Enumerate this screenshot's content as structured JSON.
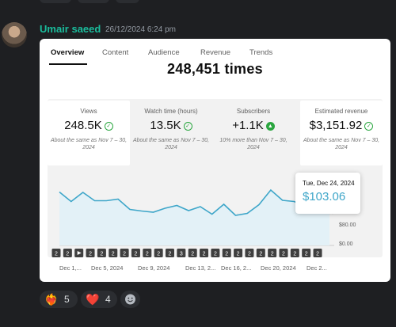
{
  "message": {
    "author": "Umair saeed",
    "timestamp": "26/12/2024 6:24 pm"
  },
  "screenshot": {
    "tabs": [
      {
        "label": "Overview",
        "active": true
      },
      {
        "label": "Content",
        "active": false
      },
      {
        "label": "Audience",
        "active": false
      },
      {
        "label": "Revenue",
        "active": false
      },
      {
        "label": "Trends",
        "active": false
      }
    ],
    "partial_heading": "248,451 times",
    "metrics": [
      {
        "label": "Views",
        "value": "248.5K",
        "note": "About the same as Nov 7 – 30, 2024",
        "icon": "check-circle-icon"
      },
      {
        "label": "Watch time (hours)",
        "value": "13.5K",
        "note": "About the same as Nov 7 – 30, 2024",
        "icon": "check-circle-icon"
      },
      {
        "label": "Subscribers",
        "value": "+1.1K",
        "note": "10% more than Nov 7 – 30, 2024",
        "icon": "up-arrow-icon"
      },
      {
        "label": "Estimated revenue",
        "value": "$3,151.92",
        "note": "About the same as Nov 7 – 30, 2024",
        "icon": "check-circle-icon"
      }
    ],
    "tooltip": {
      "date": "Tue, Dec 24, 2024",
      "value": "$103.06"
    },
    "markers": [
      "2",
      "2",
      "play",
      "2",
      "2",
      "2",
      "2",
      "2",
      "2",
      "2",
      "2",
      "3",
      "2",
      "2",
      "2",
      "2",
      "2",
      "2",
      "2",
      "2",
      "2",
      "2",
      "2",
      "2"
    ]
  },
  "chart_data": {
    "type": "area",
    "x": [
      "Dec 1",
      "Dec 2",
      "Dec 3",
      "Dec 4",
      "Dec 5",
      "Dec 6",
      "Dec 7",
      "Dec 8",
      "Dec 9",
      "Dec 10",
      "Dec 11",
      "Dec 12",
      "Dec 13",
      "Dec 14",
      "Dec 15",
      "Dec 16",
      "Dec 17",
      "Dec 18",
      "Dec 19",
      "Dec 20",
      "Dec 21",
      "Dec 22",
      "Dec 23",
      "Dec 24"
    ],
    "values": [
      135,
      111,
      134,
      113,
      113,
      117,
      91,
      87,
      84,
      94,
      101,
      88,
      98,
      79,
      104,
      76,
      81,
      103,
      140,
      114,
      111,
      96,
      92,
      103
    ],
    "tick_labels": [
      "Dec 1,...",
      "Dec 5, 2024",
      "Dec 9, 2024",
      "Dec 13, 2...",
      "Dec 16, 2...",
      "Dec 20, 2024",
      "Dec 2..."
    ],
    "y_ticks": [
      "$80.00",
      "$0.00"
    ],
    "ylim": [
      0,
      160
    ],
    "color": "#3ea6c9",
    "fill": "#e3f1f7"
  },
  "reactions": [
    {
      "emoji": "fire-heart-icon",
      "glyph": "❤️‍🔥",
      "count": "5"
    },
    {
      "emoji": "heart-icon",
      "glyph": "❤️",
      "count": "4"
    }
  ],
  "colors": {
    "background": "#1e1f22",
    "author": "#1abc9c",
    "accent": "#3ea6c9",
    "success": "#2ba640"
  }
}
